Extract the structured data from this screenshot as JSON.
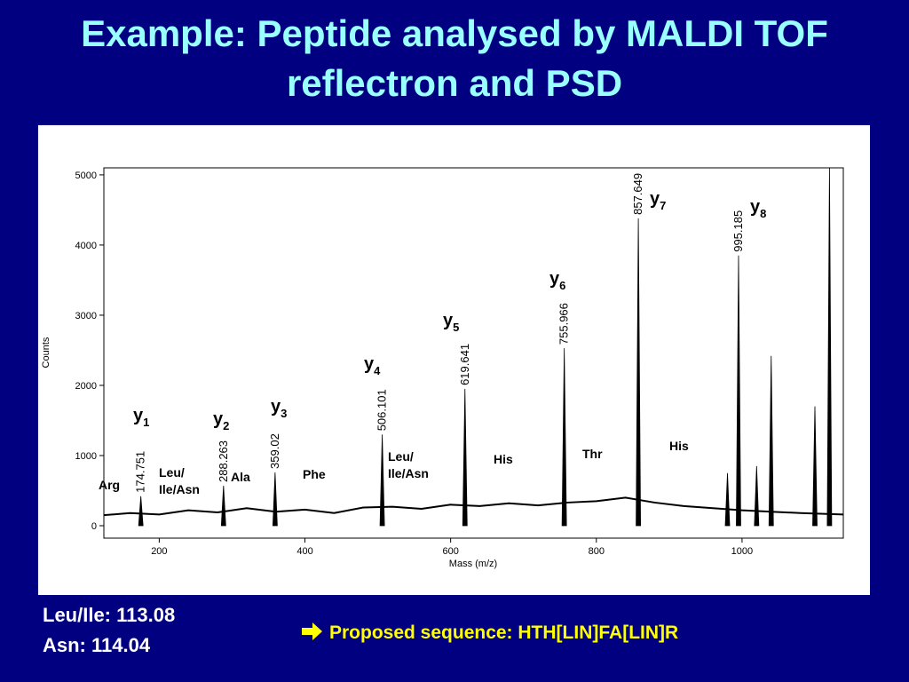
{
  "title": {
    "lines": [
      "Example: Peptide analysed by MALDI TOF",
      "reflectron and PSD"
    ]
  },
  "chart_data": {
    "type": "spectrum",
    "x_label": "Mass (m/z)",
    "y_label": "Counts",
    "xlim": [
      124,
      1139
    ],
    "ylim": [
      -177,
      5100
    ],
    "xticks": [
      200,
      400,
      600,
      800,
      1000
    ],
    "yticks": [
      0,
      1000,
      2000,
      3000,
      4000,
      5000
    ],
    "color": "#000000",
    "peaks": {
      "x": [
        174.751,
        288.263,
        359.02,
        506.101,
        619.641,
        755.966,
        857.649,
        995.185
      ],
      "values": [
        420,
        570,
        760,
        1300,
        1950,
        2530,
        4380,
        3850
      ]
    },
    "other_peaks": {
      "x": [
        980,
        1020,
        1040,
        1100,
        1120
      ],
      "values": [
        750,
        850,
        2420,
        1700,
        5100
      ]
    },
    "baseline": {
      "x": [
        124,
        160,
        200,
        240,
        280,
        320,
        360,
        400,
        440,
        480,
        520,
        560,
        600,
        640,
        680,
        720,
        760,
        800,
        840,
        880,
        920,
        960,
        1000,
        1040,
        1080,
        1139
      ],
      "values": [
        150,
        180,
        160,
        220,
        190,
        250,
        200,
        230,
        180,
        260,
        270,
        240,
        300,
        280,
        320,
        290,
        330,
        350,
        400,
        330,
        280,
        250,
        220,
        200,
        180,
        160
      ]
    },
    "ion_labels": [
      {
        "text": "y",
        "subscript": "1"
      },
      {
        "text": "y",
        "subscript": "2"
      },
      {
        "text": "y",
        "subscript": "3"
      },
      {
        "text": "y",
        "subscript": "4"
      },
      {
        "text": "y",
        "subscript": "5"
      },
      {
        "text": "y",
        "subscript": "6"
      },
      {
        "text": "y",
        "subscript": "7"
      },
      {
        "text": "y",
        "subscript": "8"
      }
    ],
    "residue_labels": [
      {
        "lines": [
          "Arg"
        ]
      },
      {
        "lines": [
          "Leu/",
          "Ile/Asn"
        ]
      },
      {
        "lines": [
          "Ala"
        ]
      },
      {
        "lines": [
          "Phe"
        ]
      },
      {
        "lines": [
          "Leu/",
          "Ile/Asn"
        ]
      },
      {
        "lines": [
          "His"
        ]
      },
      {
        "lines": [
          "Thr"
        ]
      },
      {
        "lines": [
          "His"
        ]
      }
    ]
  },
  "notes": [
    "Leu/Ile: 113.08",
    "Asn: 114.04"
  ],
  "conclusion": "Proposed sequence: HTH[LIN]FA[LIN]R"
}
